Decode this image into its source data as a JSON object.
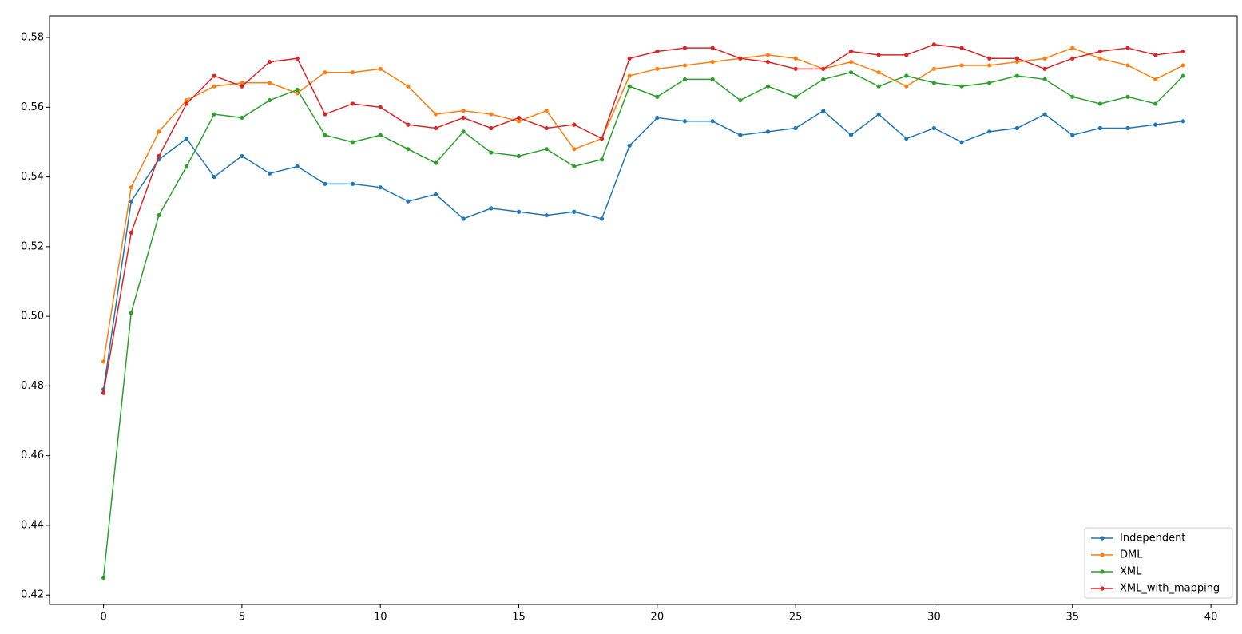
{
  "chart_data": {
    "type": "line",
    "x": [
      0,
      1,
      2,
      3,
      4,
      5,
      6,
      7,
      8,
      9,
      10,
      11,
      12,
      13,
      14,
      15,
      16,
      17,
      18,
      19,
      20,
      21,
      22,
      23,
      24,
      25,
      26,
      27,
      28,
      29,
      30,
      31,
      32,
      33,
      34,
      35,
      36,
      37,
      38,
      39
    ],
    "series": [
      {
        "name": "Independent",
        "color": "#1f77b4",
        "values": [
          0.479,
          0.533,
          0.545,
          0.551,
          0.54,
          0.546,
          0.541,
          0.543,
          0.538,
          0.538,
          0.537,
          0.533,
          0.535,
          0.528,
          0.531,
          0.53,
          0.529,
          0.53,
          0.528,
          0.549,
          0.557,
          0.556,
          0.556,
          0.552,
          0.553,
          0.554,
          0.559,
          0.552,
          0.558,
          0.551,
          0.554,
          0.55,
          0.553,
          0.554,
          0.558,
          0.552,
          0.554,
          0.554,
          0.555,
          0.556
        ]
      },
      {
        "name": "DML",
        "color": "#ff7f0e",
        "values": [
          0.487,
          0.537,
          0.553,
          0.562,
          0.566,
          0.567,
          0.567,
          0.564,
          0.57,
          0.57,
          0.571,
          0.566,
          0.558,
          0.559,
          0.558,
          0.556,
          0.559,
          0.548,
          0.551,
          0.569,
          0.571,
          0.572,
          0.573,
          0.574,
          0.575,
          0.574,
          0.571,
          0.573,
          0.57,
          0.566,
          0.571,
          0.572,
          0.572,
          0.573,
          0.574,
          0.577,
          0.574,
          0.572,
          0.568,
          0.572
        ]
      },
      {
        "name": "XML",
        "color": "#2ca02c",
        "values": [
          0.425,
          0.501,
          0.529,
          0.543,
          0.558,
          0.557,
          0.562,
          0.565,
          0.552,
          0.55,
          0.552,
          0.548,
          0.544,
          0.553,
          0.547,
          0.546,
          0.548,
          0.543,
          0.545,
          0.566,
          0.563,
          0.568,
          0.568,
          0.562,
          0.566,
          0.563,
          0.568,
          0.57,
          0.566,
          0.569,
          0.567,
          0.566,
          0.567,
          0.569,
          0.568,
          0.563,
          0.561,
          0.563,
          0.561,
          0.569
        ]
      },
      {
        "name": "XML_with_mapping",
        "color": "#d62728",
        "values": [
          0.478,
          0.524,
          0.546,
          0.561,
          0.569,
          0.566,
          0.573,
          0.574,
          0.558,
          0.561,
          0.56,
          0.555,
          0.554,
          0.557,
          0.554,
          0.557,
          0.554,
          0.555,
          0.551,
          0.574,
          0.576,
          0.577,
          0.577,
          0.574,
          0.573,
          0.571,
          0.571,
          0.576,
          0.575,
          0.575,
          0.578,
          0.577,
          0.574,
          0.574,
          0.571,
          0.574,
          0.576,
          0.577,
          0.575,
          0.576
        ]
      }
    ],
    "xlim": [
      -1.95,
      40.95
    ],
    "xticks": [
      0,
      5,
      10,
      15,
      20,
      25,
      30,
      35,
      40
    ],
    "ylim": [
      0.4173,
      0.5862
    ],
    "yticks": [
      0.42,
      0.44,
      0.46,
      0.48,
      {
        "value": 0.5,
        "label": "0.50"
      },
      0.52,
      0.54,
      0.56,
      0.58
    ],
    "legend": "lower right"
  }
}
